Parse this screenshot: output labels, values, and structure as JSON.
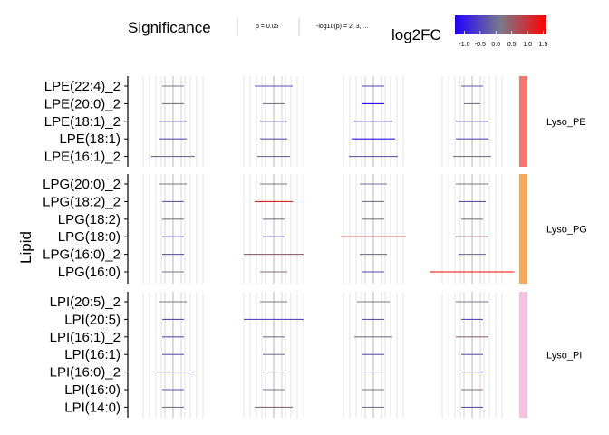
{
  "legend": {
    "significance_title": "Significance",
    "significance_items": [
      "p = 0.05",
      "-log10(p) = 2, 3, ..."
    ],
    "color_title": "log2FC",
    "color_ticks": [
      "-1.0",
      "-0.5",
      "0.0",
      "0.5",
      "1.0",
      "1.5"
    ],
    "color_tick_values": [
      -1.0,
      -0.5,
      0.0,
      0.5,
      1.0,
      1.5
    ],
    "color_range": [
      -1.3,
      1.6
    ],
    "color_low": "#2200ff",
    "color_mid": "#7a7a8a",
    "color_high": "#ff0000"
  },
  "chart_data": {
    "type": "forest",
    "ylabel": "Lipid",
    "columns": 4,
    "groups": [
      {
        "name": "Lyso_PE",
        "strip_color": "#f8766d",
        "lipids": [
          "LPE(22:4)_2",
          "LPE(20:0)_2",
          "LPE(18:1)_2",
          "LPE(18:1)",
          "LPE(16:1)_2"
        ],
        "segments": [
          [
            {
              "lo": -0.4,
              "hi": 0.4,
              "fc": 0.2
            },
            {
              "lo": -0.7,
              "hi": 0.7,
              "fc": -0.4
            },
            {
              "lo": -0.4,
              "hi": 0.4,
              "fc": -0.5
            },
            {
              "lo": -0.4,
              "hi": 0.4,
              "fc": -0.3
            }
          ],
          [
            {
              "lo": -0.4,
              "hi": 0.4,
              "fc": 0.2
            },
            {
              "lo": -0.4,
              "hi": 0.4,
              "fc": 0.2
            },
            {
              "lo": -0.4,
              "hi": 0.4,
              "fc": -1.2
            },
            {
              "lo": -0.3,
              "hi": 0.3,
              "fc": 0.1
            }
          ],
          [
            {
              "lo": -0.5,
              "hi": 0.5,
              "fc": -0.2
            },
            {
              "lo": -0.5,
              "hi": 0.5,
              "fc": -0.1
            },
            {
              "lo": -0.7,
              "hi": 0.7,
              "fc": -0.3
            },
            {
              "lo": -0.6,
              "hi": 0.6,
              "fc": -0.2
            }
          ],
          [
            {
              "lo": -0.5,
              "hi": 0.5,
              "fc": -0.4
            },
            {
              "lo": -0.5,
              "hi": 0.5,
              "fc": -0.3
            },
            {
              "lo": -0.8,
              "hi": 0.8,
              "fc": -1.1
            },
            {
              "lo": -0.6,
              "hi": 0.6,
              "fc": -0.4
            }
          ],
          [
            {
              "lo": -0.8,
              "hi": 0.8,
              "fc": 0.0
            },
            {
              "lo": -0.6,
              "hi": 0.6,
              "fc": 0.0
            },
            {
              "lo": -0.9,
              "hi": 0.9,
              "fc": -0.2
            },
            {
              "lo": -0.7,
              "hi": 0.7,
              "fc": 0.1
            }
          ]
        ]
      },
      {
        "name": "Lyso_PG",
        "strip_color": "#f9a85a",
        "lipids": [
          "LPG(20:0)_2",
          "LPG(18:2)_2",
          "LPG(18:2)",
          "LPG(18:0)",
          "LPG(16:0)_2",
          "LPG(16:0)"
        ],
        "segments": [
          [
            {
              "lo": -0.5,
              "hi": 0.5,
              "fc": 0.2
            },
            {
              "lo": -0.5,
              "hi": 0.5,
              "fc": 0.2
            },
            {
              "lo": -0.5,
              "hi": 0.5,
              "fc": 0.0
            },
            {
              "lo": -0.6,
              "hi": 0.6,
              "fc": 0.2
            }
          ],
          [
            {
              "lo": -0.4,
              "hi": 0.4,
              "fc": -0.2
            },
            {
              "lo": -0.7,
              "hi": 0.7,
              "fc": 1.2
            },
            {
              "lo": -0.4,
              "hi": 0.4,
              "fc": 0.1
            },
            {
              "lo": -0.5,
              "hi": 0.5,
              "fc": -0.3
            }
          ],
          [
            {
              "lo": -0.4,
              "hi": 0.4,
              "fc": 0.2
            },
            {
              "lo": -0.4,
              "hi": 0.4,
              "fc": 0.1
            },
            {
              "lo": -0.4,
              "hi": 0.4,
              "fc": 0.2
            },
            {
              "lo": -0.4,
              "hi": 0.4,
              "fc": 0.2
            }
          ],
          [
            {
              "lo": -0.4,
              "hi": 0.4,
              "fc": -0.2
            },
            {
              "lo": -0.4,
              "hi": 0.4,
              "fc": -0.2
            },
            {
              "lo": -1.2,
              "hi": 1.2,
              "fc": 0.6
            },
            {
              "lo": -0.6,
              "hi": 0.6,
              "fc": 0.3
            }
          ],
          [
            {
              "lo": -0.4,
              "hi": 0.4,
              "fc": -0.2
            },
            {
              "lo": -1.1,
              "hi": 1.1,
              "fc": 0.4
            },
            {
              "lo": -0.5,
              "hi": 0.5,
              "fc": 0.2
            },
            {
              "lo": -0.5,
              "hi": 0.5,
              "fc": 0.1
            }
          ],
          [
            {
              "lo": -0.4,
              "hi": 0.4,
              "fc": 0.2
            },
            {
              "lo": -0.5,
              "hi": 0.5,
              "fc": 0.3
            },
            {
              "lo": -0.4,
              "hi": 0.4,
              "fc": -0.5
            },
            {
              "lo": -1.55,
              "hi": 1.55,
              "fc": 1.55
            }
          ]
        ]
      },
      {
        "name": "Lyso_PI",
        "strip_color": "#f7c1e0",
        "lipids": [
          "LPI(20:5)_2",
          "LPI(20:5)",
          "LPI(16:1)_2",
          "LPI(16:1)",
          "LPI(16:0)_2",
          "LPI(16:0)",
          "LPI(14:0)"
        ],
        "segments": [
          [
            {
              "lo": -0.5,
              "hi": 0.5,
              "fc": 0.2
            },
            {
              "lo": -0.5,
              "hi": 0.5,
              "fc": 0.2
            },
            {
              "lo": -0.6,
              "hi": 0.6,
              "fc": 0.2
            },
            {
              "lo": -0.6,
              "hi": 0.6,
              "fc": 0.1
            }
          ],
          [
            {
              "lo": -0.4,
              "hi": 0.4,
              "fc": -0.4
            },
            {
              "lo": -1.1,
              "hi": 1.1,
              "fc": -0.4
            },
            {
              "lo": -0.4,
              "hi": 0.4,
              "fc": -0.3
            },
            {
              "lo": -0.4,
              "hi": 0.4,
              "fc": -0.4
            }
          ],
          [
            {
              "lo": -0.4,
              "hi": 0.4,
              "fc": -0.4
            },
            {
              "lo": -0.4,
              "hi": 0.4,
              "fc": 0.1
            },
            {
              "lo": -0.7,
              "hi": 0.7,
              "fc": 0.2
            },
            {
              "lo": -0.6,
              "hi": 0.6,
              "fc": 0.3
            }
          ],
          [
            {
              "lo": -0.4,
              "hi": 0.4,
              "fc": -0.3
            },
            {
              "lo": -0.4,
              "hi": 0.4,
              "fc": 0.1
            },
            {
              "lo": -0.4,
              "hi": 0.4,
              "fc": -0.3
            },
            {
              "lo": -0.4,
              "hi": 0.4,
              "fc": -0.3
            }
          ],
          [
            {
              "lo": -0.6,
              "hi": 0.6,
              "fc": -0.5
            },
            {
              "lo": -0.4,
              "hi": 0.4,
              "fc": 0.2
            },
            {
              "lo": -0.4,
              "hi": 0.4,
              "fc": 0.1
            },
            {
              "lo": -0.4,
              "hi": 0.4,
              "fc": -0.2
            }
          ],
          [
            {
              "lo": -0.4,
              "hi": 0.4,
              "fc": -0.4
            },
            {
              "lo": -0.4,
              "hi": 0.4,
              "fc": 0.2
            },
            {
              "lo": -0.4,
              "hi": 0.4,
              "fc": 0.2
            },
            {
              "lo": -0.4,
              "hi": 0.4,
              "fc": 0.3
            }
          ],
          [
            {
              "lo": -0.4,
              "hi": 0.4,
              "fc": 0.2
            },
            {
              "lo": -0.7,
              "hi": 0.7,
              "fc": 0.3
            },
            {
              "lo": -0.4,
              "hi": 0.4,
              "fc": 0.1
            },
            {
              "lo": -0.4,
              "hi": 0.4,
              "fc": -0.3
            }
          ]
        ]
      }
    ]
  }
}
